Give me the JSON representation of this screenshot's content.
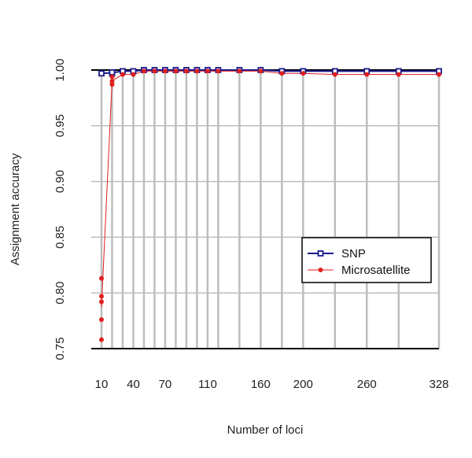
{
  "chart_data": {
    "type": "scatter",
    "title": "",
    "xlabel": "Number of loci",
    "ylabel": "Assignment accuracy",
    "x_tick_labels": [
      "10",
      "40",
      "70",
      "110",
      "160",
      "200",
      "260",
      "328"
    ],
    "x_tick_values": [
      10,
      40,
      70,
      110,
      160,
      200,
      260,
      328
    ],
    "y_tick_labels": [
      "0.75",
      "0.80",
      "0.85",
      "0.90",
      "0.95",
      "1.00"
    ],
    "y_tick_values": [
      0.75,
      0.8,
      0.85,
      0.9,
      0.95,
      1.0
    ],
    "xlim": [
      10,
      328
    ],
    "ylim": [
      0.75,
      1.0
    ],
    "grid": true,
    "grid_x": [
      10,
      20,
      30,
      40,
      50,
      60,
      70,
      80,
      90,
      100,
      110,
      120,
      140,
      160,
      180,
      200,
      230,
      260,
      290,
      328
    ],
    "grid_y": [
      0.75,
      0.8,
      0.85,
      0.9,
      0.95,
      1.0
    ],
    "legend_position": "right",
    "series": [
      {
        "name": "SNP",
        "marker": "open-square",
        "color": "#1a1a8c",
        "x": [
          10,
          20,
          20,
          30,
          40,
          50,
          60,
          70,
          80,
          90,
          100,
          110,
          120,
          140,
          160,
          180,
          200,
          230,
          260,
          290,
          328
        ],
        "y": [
          0.997,
          0.997,
          0.998,
          0.999,
          0.999,
          1.0,
          1.0,
          1.0,
          1.0,
          1.0,
          1.0,
          1.0,
          1.0,
          1.0,
          1.0,
          0.999,
          0.999,
          0.999,
          0.999,
          0.999,
          0.999
        ]
      },
      {
        "name": "Microsatellite",
        "marker": "filled-circle",
        "color": "#e01f1f",
        "x": [
          10,
          10,
          10,
          10,
          10,
          20,
          20,
          20,
          30,
          40,
          50,
          60,
          70,
          80,
          90,
          100,
          110,
          120,
          140,
          160,
          180,
          200,
          230,
          260,
          290,
          328
        ],
        "y": [
          0.813,
          0.797,
          0.792,
          0.776,
          0.758,
          0.987,
          0.99,
          0.994,
          0.996,
          0.996,
          0.999,
          0.999,
          0.999,
          0.999,
          0.999,
          0.999,
          0.999,
          0.999,
          0.999,
          0.999,
          0.997,
          0.997,
          0.996,
          0.996,
          0.996,
          0.996
        ]
      }
    ]
  }
}
